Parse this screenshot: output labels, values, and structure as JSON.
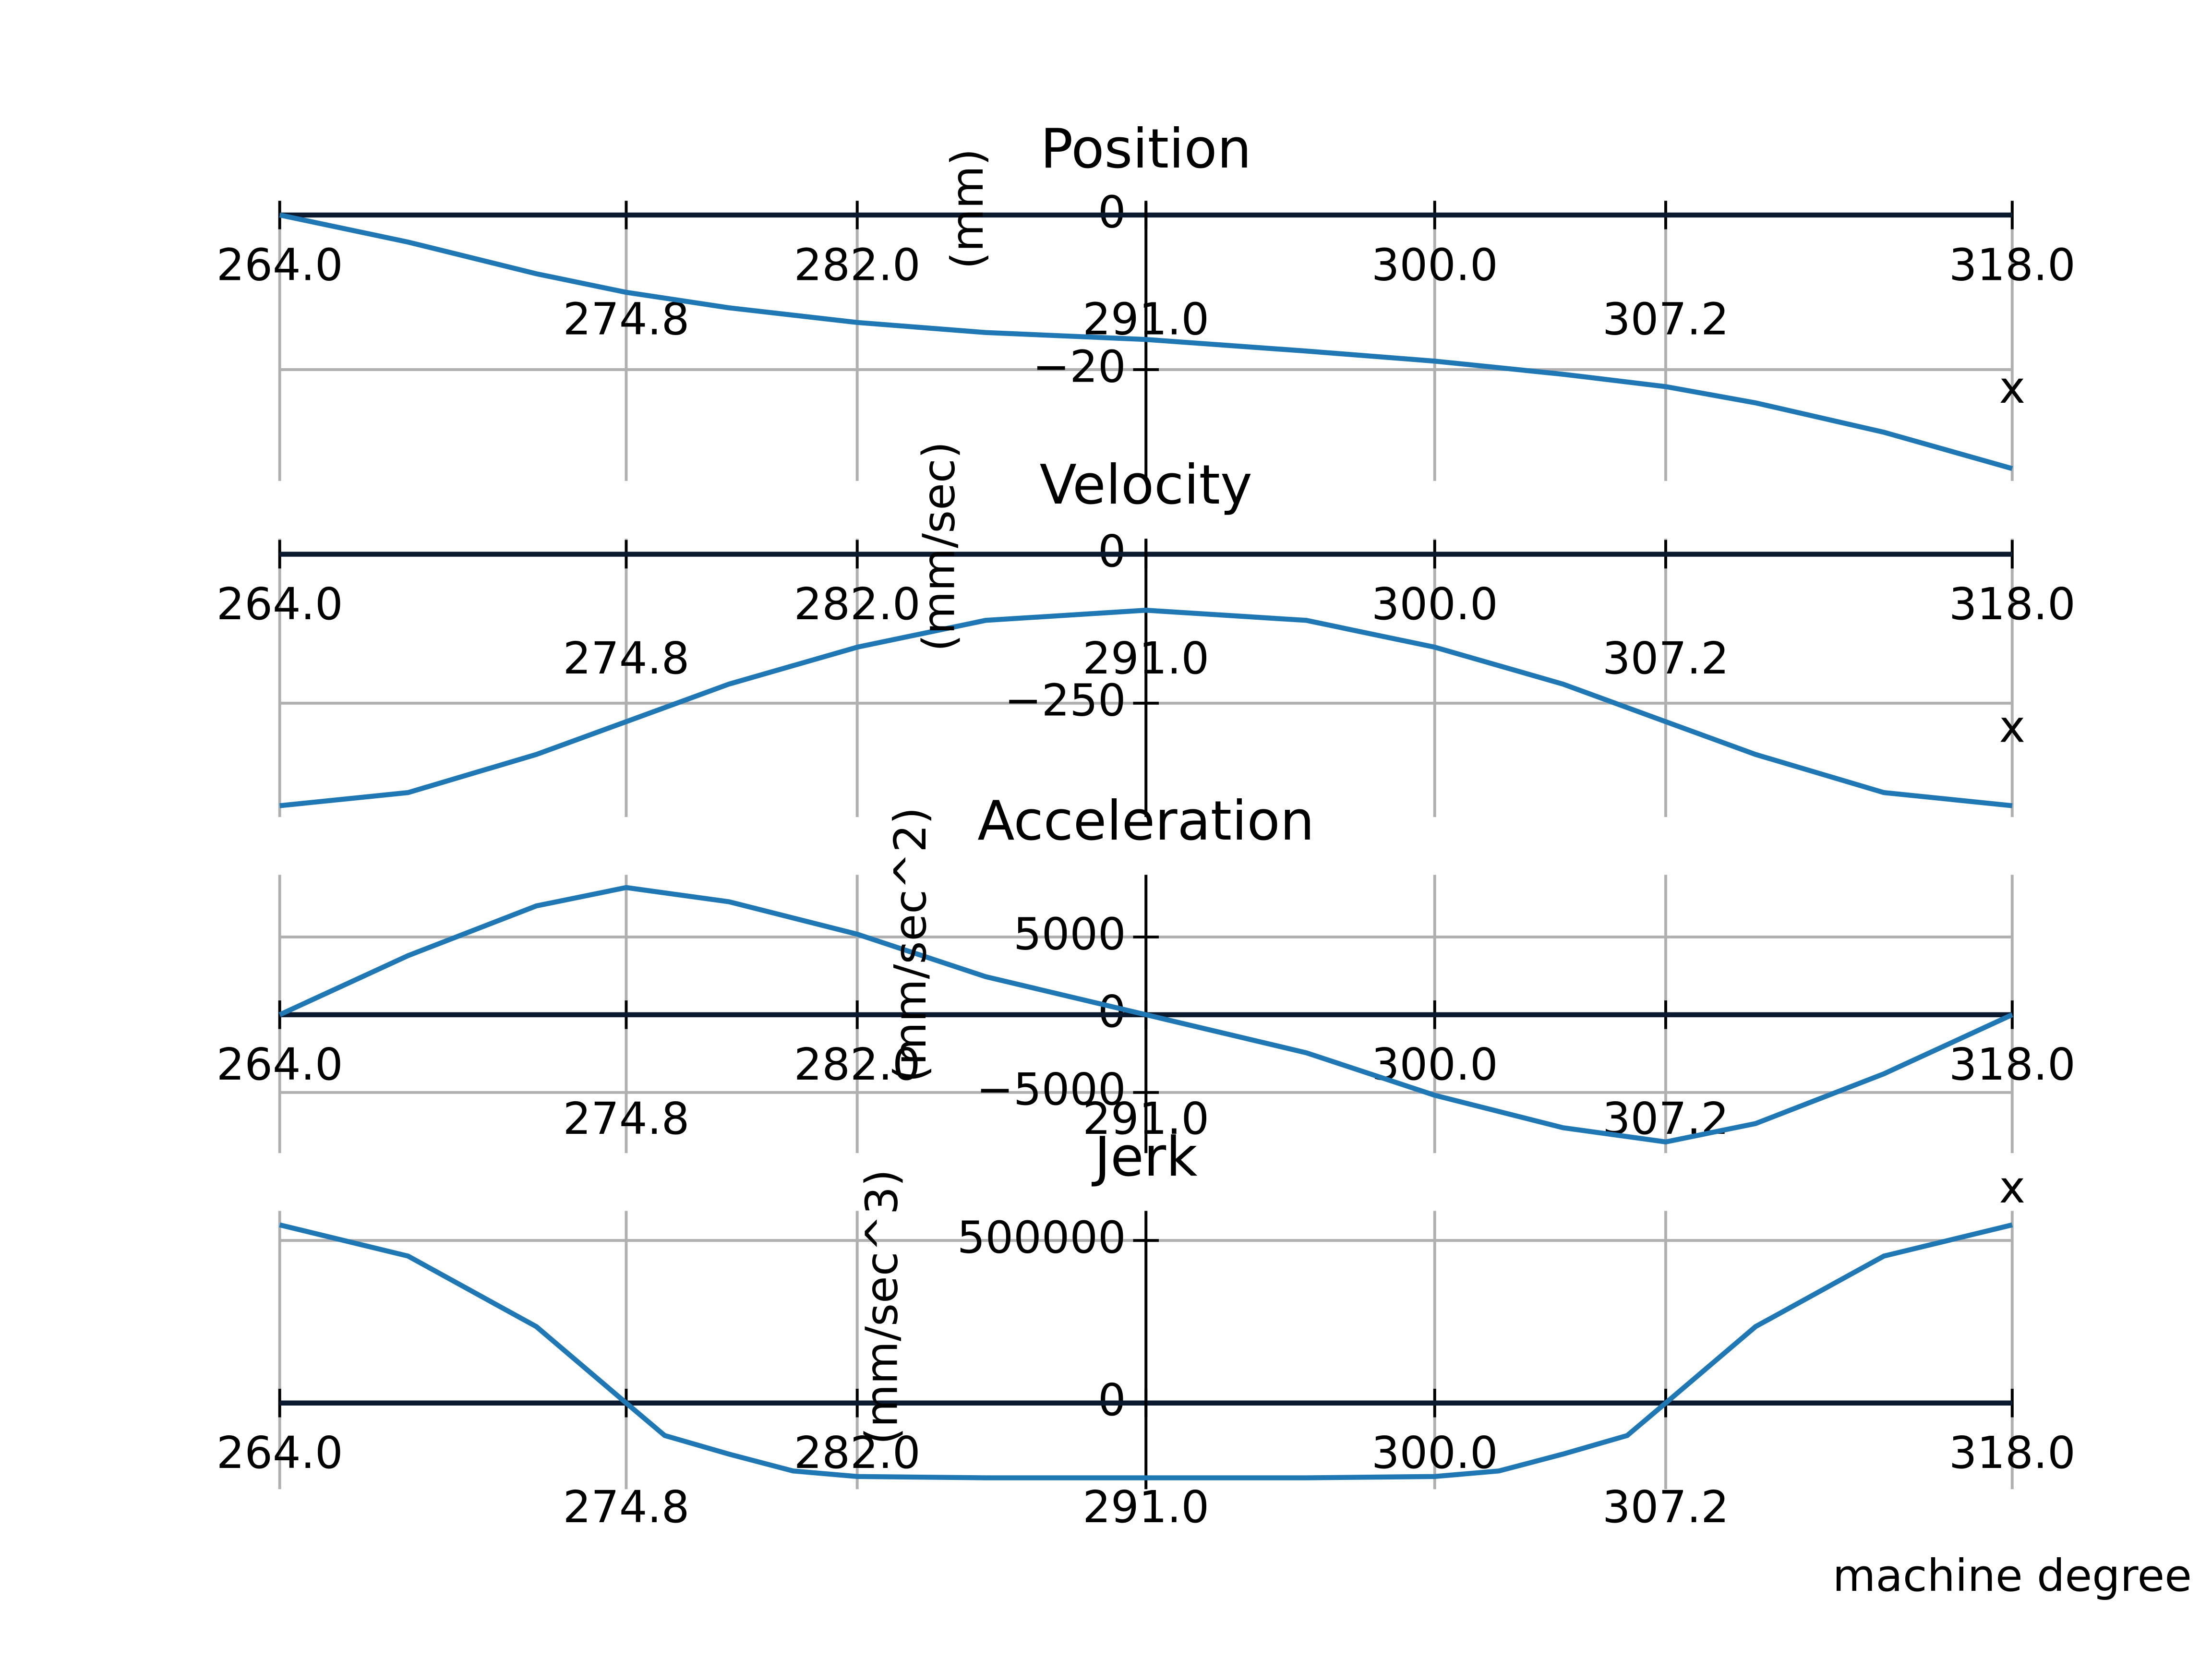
{
  "chart_data": [
    {
      "type": "line",
      "title": "Position",
      "y_label": "(mm)",
      "x_label": "x",
      "color": "#1f77b4",
      "grid": true,
      "x": [
        264,
        268,
        272,
        274.8,
        278,
        282,
        286,
        291,
        296,
        300,
        304,
        307.2,
        310,
        314,
        318
      ],
      "values": [
        0,
        -3.5,
        -7.6,
        -10,
        -12,
        -13.9,
        -15.2,
        -16.1,
        -17.6,
        -18.9,
        -20.6,
        -22.2,
        -24.3,
        -28.1,
        -32.8
      ],
      "xlim": [
        264,
        318
      ],
      "xticks": [
        {
          "value": 264,
          "label": "264.0"
        },
        274.8,
        {
          "value": 282,
          "label": "282.0"
        },
        {
          "value": 291,
          "label": "291.0"
        },
        {
          "value": 300,
          "label": "300.0"
        },
        307.2,
        {
          "value": 318,
          "label": "318.0"
        }
      ],
      "ylim": [
        -34.4,
        1.6
      ],
      "yticks": [
        0,
        {
          "value": -20,
          "label": "−20"
        }
      ]
    },
    {
      "type": "line",
      "title": "Velocity",
      "y_label": "(mm/sec)",
      "x_label": "x",
      "color": "#1f77b4",
      "grid": true,
      "x": [
        264,
        268,
        272,
        274.8,
        278,
        282,
        286,
        291,
        296,
        300,
        304,
        307.2,
        310,
        314,
        318
      ],
      "values": [
        -422,
        -400,
        -336,
        -281,
        -218,
        -156,
        -111,
        -94,
        -111,
        -156,
        -218,
        -281,
        -336,
        -400,
        -422
      ],
      "xlim": [
        264,
        318
      ],
      "xticks": [
        {
          "value": 264,
          "label": "264.0"
        },
        274.8,
        {
          "value": 282,
          "label": "282.0"
        },
        {
          "value": 291,
          "label": "291.0"
        },
        {
          "value": 300,
          "label": "300.0"
        },
        307.2,
        {
          "value": 318,
          "label": "318.0"
        }
      ],
      "ylim": [
        -441,
        26
      ],
      "yticks": [
        0,
        {
          "value": -250,
          "label": "−250"
        }
      ]
    },
    {
      "type": "line",
      "title": "Acceleration",
      "y_label": "(mm/sec^2)",
      "x_label": "x",
      "color": "#1f77b4",
      "grid": true,
      "x": [
        264,
        268,
        272,
        274.8,
        278,
        282,
        286,
        291,
        296,
        300,
        304,
        307.2,
        310,
        314,
        318
      ],
      "values": [
        0,
        3800,
        7000,
        8180,
        7270,
        5180,
        2450,
        0,
        -2450,
        -5180,
        -7270,
        -8180,
        -7000,
        -3800,
        0
      ],
      "xlim": [
        264,
        318
      ],
      "xticks": [
        {
          "value": 264,
          "label": "264.0"
        },
        274.8,
        {
          "value": 282,
          "label": "282.0"
        },
        {
          "value": 291,
          "label": "291.0"
        },
        {
          "value": 300,
          "label": "300.0"
        },
        307.2,
        {
          "value": 318,
          "label": "318.0"
        }
      ],
      "ylim": [
        -8900,
        9000
      ],
      "yticks": [
        {
          "value": -5000,
          "label": "−5000"
        },
        0,
        5000
      ]
    },
    {
      "type": "line",
      "title": "Jerk",
      "y_label": "(mm/sec^3)",
      "x_label": "machine degree",
      "color": "#1f77b4",
      "grid": true,
      "x": [
        264,
        268,
        272,
        274.8,
        276,
        278,
        280,
        282,
        286,
        291,
        296,
        300,
        302,
        304,
        306,
        307.2,
        310,
        314,
        318
      ],
      "values": [
        548000,
        452000,
        235000,
        0,
        -100000,
        -157000,
        -209000,
        -226000,
        -230000,
        -230000,
        -230000,
        -226000,
        -209000,
        -157000,
        -100000,
        0,
        235000,
        452000,
        548000
      ],
      "xlim": [
        264,
        318
      ],
      "xticks": [
        {
          "value": 264,
          "label": "264.0"
        },
        274.8,
        {
          "value": 282,
          "label": "282.0"
        },
        {
          "value": 291,
          "label": "291.0"
        },
        {
          "value": 300,
          "label": "300.0"
        },
        307.2,
        {
          "value": 318,
          "label": "318.0"
        }
      ],
      "ylim": [
        -265000,
        591000
      ],
      "yticks": [
        0,
        500000
      ]
    }
  ]
}
